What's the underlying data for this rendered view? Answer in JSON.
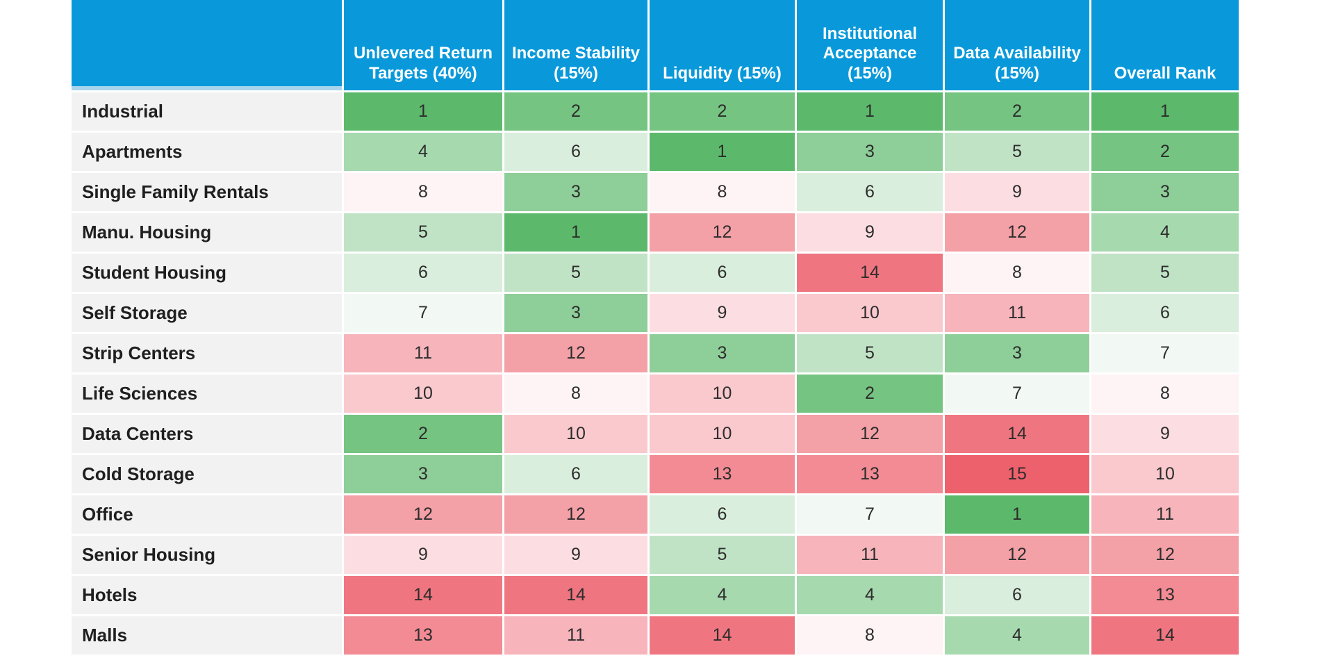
{
  "chart_data": {
    "type": "heatmap",
    "columns": [
      "Unlevered Return Targets (40%)",
      "Income Stability (15%)",
      "Liquidity (15%)",
      "Institutional Acceptance (15%)",
      "Data Availability (15%)",
      "Overall Rank"
    ],
    "rows": [
      {
        "label": "Industrial",
        "values": [
          1,
          2,
          2,
          1,
          2,
          1
        ]
      },
      {
        "label": "Apartments",
        "values": [
          4,
          6,
          1,
          3,
          5,
          2
        ]
      },
      {
        "label": "Single Family Rentals",
        "values": [
          8,
          3,
          8,
          6,
          9,
          3
        ]
      },
      {
        "label": "Manu. Housing",
        "values": [
          5,
          1,
          12,
          9,
          12,
          4
        ]
      },
      {
        "label": "Student Housing",
        "values": [
          6,
          5,
          6,
          14,
          8,
          5
        ]
      },
      {
        "label": "Self Storage",
        "values": [
          7,
          3,
          9,
          10,
          11,
          6
        ]
      },
      {
        "label": "Strip Centers",
        "values": [
          11,
          12,
          3,
          5,
          3,
          7
        ]
      },
      {
        "label": "Life Sciences",
        "values": [
          10,
          8,
          10,
          2,
          7,
          8
        ]
      },
      {
        "label": "Data Centers",
        "values": [
          2,
          10,
          10,
          12,
          14,
          9
        ]
      },
      {
        "label": "Cold Storage",
        "values": [
          3,
          6,
          13,
          13,
          15,
          10
        ]
      },
      {
        "label": "Office",
        "values": [
          12,
          12,
          6,
          7,
          1,
          11
        ]
      },
      {
        "label": "Senior Housing",
        "values": [
          9,
          9,
          5,
          11,
          12,
          12
        ]
      },
      {
        "label": "Hotels",
        "values": [
          14,
          14,
          4,
          4,
          6,
          13
        ]
      },
      {
        "label": "Malls",
        "values": [
          13,
          11,
          14,
          8,
          4,
          14
        ]
      }
    ],
    "scale": {
      "min": 1,
      "max": 15,
      "anchors": [
        {
          "value": 1,
          "color": "#5CB96B"
        },
        {
          "value": 7,
          "color": "#F2F8F3"
        },
        {
          "value": 8,
          "color": "#FEF3F5"
        },
        {
          "value": 15,
          "color": "#ED616D"
        }
      ]
    }
  },
  "colors": {
    "header_bg": "#0999DB",
    "header_text": "#FFFFFF",
    "header_accent_strip": "#A8D4ED",
    "label_bg": "#F2F2F2",
    "label_text": "#1F1F1F",
    "value_text": "#2D2D2D",
    "divider": "#FFFFFF",
    "best_green": "#5CB96B",
    "worst_red": "#ED616D"
  }
}
